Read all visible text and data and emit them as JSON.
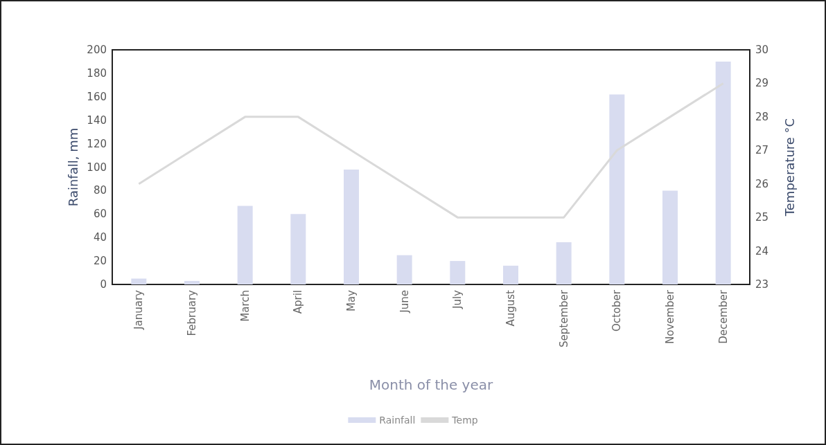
{
  "chart_data": {
    "type": "bar",
    "xlabel": "Month of the year",
    "ylabel": "Rainfall, mm",
    "y2label": "Temperature °C",
    "categories": [
      "January",
      "February",
      "March",
      "April",
      "May",
      "June",
      "July",
      "August",
      "September",
      "October",
      "November",
      "December"
    ],
    "series": [
      {
        "name": "Rainfall",
        "color": "#d8dcf0",
        "values": [
          5,
          3,
          67,
          60,
          98,
          25,
          20,
          16,
          36,
          162,
          80,
          190
        ]
      },
      {
        "name": "Temp",
        "type": "line",
        "axis": "y2",
        "color": "#d9d9d9",
        "values": [
          26,
          27,
          28,
          28,
          27,
          26,
          25,
          25,
          25,
          27,
          28,
          29
        ]
      }
    ],
    "ylim": [
      0,
      200
    ],
    "yticks": [
      0,
      20,
      40,
      60,
      80,
      100,
      120,
      140,
      160,
      180,
      200
    ],
    "y2lim": [
      23,
      30
    ],
    "y2ticks": [
      23,
      24,
      25,
      26,
      27,
      28,
      29,
      30
    ],
    "grid": false,
    "legend": "bottom",
    "marker": "none"
  }
}
